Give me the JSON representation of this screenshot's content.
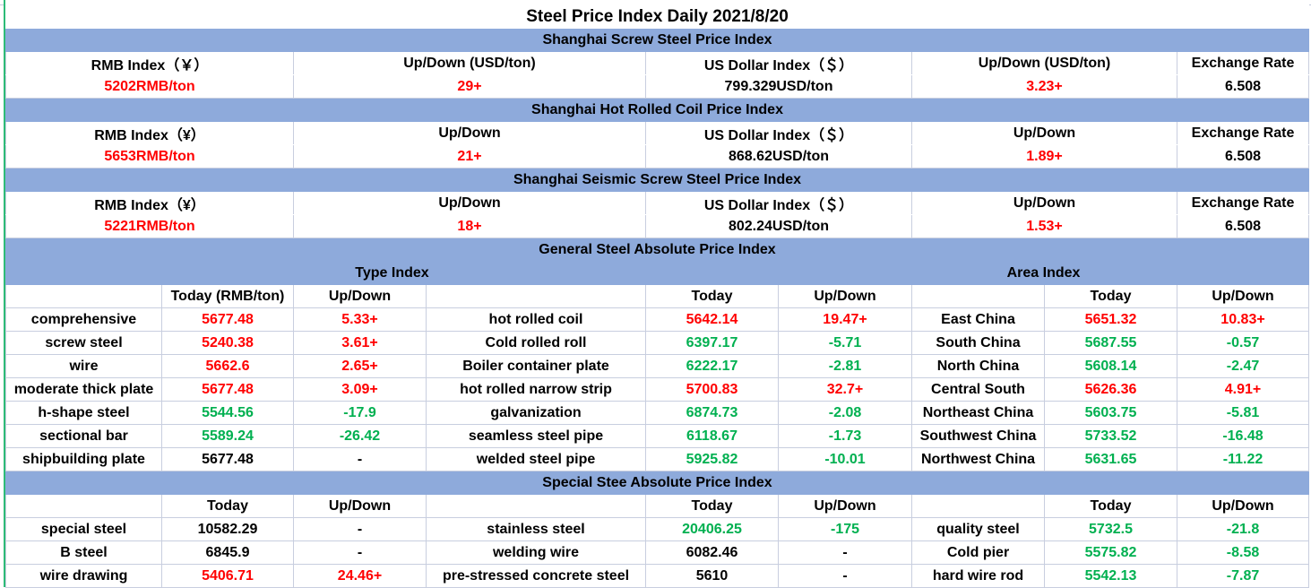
{
  "title": "Steel Price Index Daily  2021/8/20",
  "colors": {
    "header_bg": "#8eaadb",
    "up": "#ff0000",
    "down": "#00b050"
  },
  "blocks": [
    {
      "header": "Shanghai Screw Steel Price Index",
      "labels": [
        "RMB Index（￥）",
        "Up/Down (USD/ton)",
        "US Dollar Index（＄）",
        "Up/Down (USD/ton)",
        "Exchange Rate"
      ],
      "values": [
        {
          "t": "5202RMB/ton",
          "c": "r"
        },
        {
          "t": "29+",
          "c": "r"
        },
        {
          "t": "799.329USD/ton",
          "c": "k"
        },
        {
          "t": "3.23+",
          "c": "r"
        },
        {
          "t": "6.508",
          "c": "k"
        }
      ]
    },
    {
      "header": "Shanghai Hot Rolled Coil Price Index",
      "labels": [
        "RMB Index（¥）",
        "Up/Down",
        "US Dollar Index（＄）",
        "Up/Down",
        "Exchange Rate"
      ],
      "values": [
        {
          "t": "5653RMB/ton",
          "c": "r"
        },
        {
          "t": "21+",
          "c": "r"
        },
        {
          "t": "868.62USD/ton",
          "c": "k"
        },
        {
          "t": "1.89+",
          "c": "r"
        },
        {
          "t": "6.508",
          "c": "k"
        }
      ]
    },
    {
      "header": "Shanghai Seismic Screw Steel Price Index",
      "labels": [
        "RMB Index（¥）",
        "Up/Down",
        "US Dollar Index（＄）",
        "Up/Down",
        "Exchange Rate"
      ],
      "values": [
        {
          "t": "5221RMB/ton",
          "c": "r"
        },
        {
          "t": "18+",
          "c": "r"
        },
        {
          "t": "802.24USD/ton",
          "c": "k"
        },
        {
          "t": "1.53+",
          "c": "r"
        },
        {
          "t": "6.508",
          "c": "k"
        }
      ]
    }
  ],
  "general": {
    "header": "General Steel Absolute Price Index",
    "type_index": "Type Index",
    "area_index": "Area Index",
    "columns": [
      "",
      "Today (RMB/ton)",
      "Up/Down",
      "",
      "Today",
      "Up/Down",
      "",
      "Today",
      "Up/Down"
    ],
    "rows": [
      [
        {
          "t": "comprehensive",
          "c": "k"
        },
        {
          "t": "5677.48",
          "c": "r"
        },
        {
          "t": "5.33+",
          "c": "r"
        },
        {
          "t": "hot rolled coil",
          "c": "k"
        },
        {
          "t": "5642.14",
          "c": "r"
        },
        {
          "t": "19.47+",
          "c": "r"
        },
        {
          "t": "East China",
          "c": "k"
        },
        {
          "t": "5651.32",
          "c": "r"
        },
        {
          "t": "10.83+",
          "c": "r"
        }
      ],
      [
        {
          "t": "screw steel",
          "c": "k"
        },
        {
          "t": "5240.38",
          "c": "r"
        },
        {
          "t": "3.61+",
          "c": "r"
        },
        {
          "t": "Cold rolled roll",
          "c": "k"
        },
        {
          "t": "6397.17",
          "c": "g"
        },
        {
          "t": "-5.71",
          "c": "g"
        },
        {
          "t": "South China",
          "c": "k"
        },
        {
          "t": "5687.55",
          "c": "g"
        },
        {
          "t": "-0.57",
          "c": "g"
        }
      ],
      [
        {
          "t": "wire",
          "c": "k"
        },
        {
          "t": "5662.6",
          "c": "r"
        },
        {
          "t": "2.65+",
          "c": "r"
        },
        {
          "t": "Boiler container plate",
          "c": "k"
        },
        {
          "t": "6222.17",
          "c": "g"
        },
        {
          "t": "-2.81",
          "c": "g"
        },
        {
          "t": "North China",
          "c": "k"
        },
        {
          "t": "5608.14",
          "c": "g"
        },
        {
          "t": "-2.47",
          "c": "g"
        }
      ],
      [
        {
          "t": "moderate thick plate",
          "c": "k"
        },
        {
          "t": "5677.48",
          "c": "r"
        },
        {
          "t": "3.09+",
          "c": "r"
        },
        {
          "t": "hot rolled narrow strip",
          "c": "k"
        },
        {
          "t": "5700.83",
          "c": "r"
        },
        {
          "t": "32.7+",
          "c": "r"
        },
        {
          "t": "Central South",
          "c": "k"
        },
        {
          "t": "5626.36",
          "c": "r"
        },
        {
          "t": "4.91+",
          "c": "r"
        }
      ],
      [
        {
          "t": "h-shape steel",
          "c": "k"
        },
        {
          "t": "5544.56",
          "c": "g"
        },
        {
          "t": "-17.9",
          "c": "g"
        },
        {
          "t": "galvanization",
          "c": "k"
        },
        {
          "t": "6874.73",
          "c": "g"
        },
        {
          "t": "-2.08",
          "c": "g"
        },
        {
          "t": "Northeast China",
          "c": "k"
        },
        {
          "t": "5603.75",
          "c": "g"
        },
        {
          "t": "-5.81",
          "c": "g"
        }
      ],
      [
        {
          "t": "sectional bar",
          "c": "k"
        },
        {
          "t": "5589.24",
          "c": "g"
        },
        {
          "t": "-26.42",
          "c": "g"
        },
        {
          "t": "seamless steel pipe",
          "c": "k"
        },
        {
          "t": "6118.67",
          "c": "g"
        },
        {
          "t": "-1.73",
          "c": "g"
        },
        {
          "t": "Southwest China",
          "c": "k"
        },
        {
          "t": "5733.52",
          "c": "g"
        },
        {
          "t": "-16.48",
          "c": "g"
        }
      ],
      [
        {
          "t": "shipbuilding plate",
          "c": "k"
        },
        {
          "t": "5677.48",
          "c": "k"
        },
        {
          "t": "-",
          "c": "k"
        },
        {
          "t": "welded steel pipe",
          "c": "k"
        },
        {
          "t": "5925.82",
          "c": "g"
        },
        {
          "t": "-10.01",
          "c": "g"
        },
        {
          "t": "Northwest China",
          "c": "k"
        },
        {
          "t": "5631.65",
          "c": "g"
        },
        {
          "t": "-11.22",
          "c": "g"
        }
      ]
    ]
  },
  "special": {
    "header": "Special Stee Absolute Price Index",
    "columns": [
      "",
      "Today",
      "Up/Down",
      "",
      "Today",
      "Up/Down",
      "",
      "Today",
      "Up/Down"
    ],
    "rows": [
      [
        {
          "t": "special steel",
          "c": "k"
        },
        {
          "t": "10582.29",
          "c": "k"
        },
        {
          "t": "-",
          "c": "k"
        },
        {
          "t": "stainless steel",
          "c": "k"
        },
        {
          "t": "20406.25",
          "c": "g"
        },
        {
          "t": "-175",
          "c": "g"
        },
        {
          "t": "quality steel",
          "c": "k"
        },
        {
          "t": "5732.5",
          "c": "g"
        },
        {
          "t": "-21.8",
          "c": "g"
        }
      ],
      [
        {
          "t": "B steel",
          "c": "k"
        },
        {
          "t": "6845.9",
          "c": "k"
        },
        {
          "t": "-",
          "c": "k"
        },
        {
          "t": "welding wire",
          "c": "k"
        },
        {
          "t": "6082.46",
          "c": "k"
        },
        {
          "t": "-",
          "c": "k"
        },
        {
          "t": "Cold pier",
          "c": "k"
        },
        {
          "t": "5575.82",
          "c": "g"
        },
        {
          "t": "-8.58",
          "c": "g"
        }
      ],
      [
        {
          "t": "wire drawing",
          "c": "k"
        },
        {
          "t": "5406.71",
          "c": "r"
        },
        {
          "t": "24.46+",
          "c": "r"
        },
        {
          "t": "pre-stressed concrete steel",
          "c": "k"
        },
        {
          "t": "5610",
          "c": "k"
        },
        {
          "t": "-",
          "c": "k"
        },
        {
          "t": "hard wire rod",
          "c": "k"
        },
        {
          "t": "5542.13",
          "c": "g"
        },
        {
          "t": "-7.87",
          "c": "g"
        }
      ]
    ]
  }
}
